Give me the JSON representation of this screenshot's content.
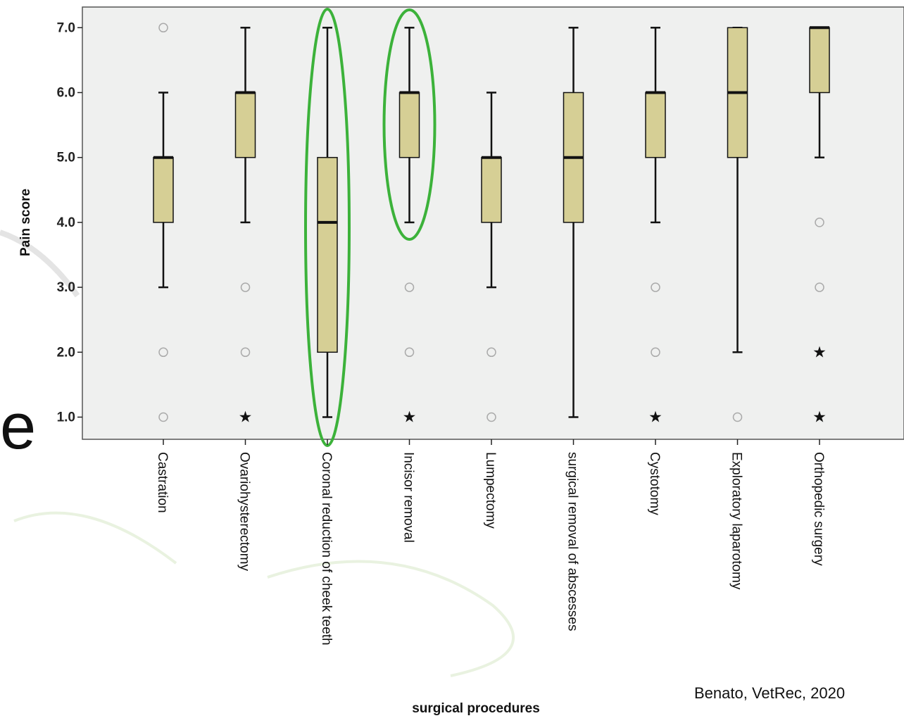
{
  "chart_data": {
    "type": "boxplot",
    "xlabel": "surgical procedures",
    "ylabel": "Pain score",
    "ylim": [
      1,
      7
    ],
    "yticks": [
      "1.0",
      "2.0",
      "3.0",
      "4.0",
      "5.0",
      "6.0",
      "7.0"
    ],
    "grid": false,
    "categories": [
      "Castration",
      "Ovariohysterectomy",
      "Coronal reduction of cheek teeth",
      "Incisor removal",
      "Lumpectomy",
      "surgical removal of abscesses",
      "Cystotomy",
      "Exploratory laparotomy",
      "Orthopedic surgery"
    ],
    "boxes": [
      {
        "whisker_low": 3,
        "q1": 4,
        "median": 5,
        "q3": 5,
        "whisker_high": 6
      },
      {
        "whisker_low": 4,
        "q1": 5,
        "median": 6,
        "q3": 6,
        "whisker_high": 7
      },
      {
        "whisker_low": 1,
        "q1": 2,
        "median": 4,
        "q3": 5,
        "whisker_high": 7
      },
      {
        "whisker_low": 4,
        "q1": 5,
        "median": 6,
        "q3": 6,
        "whisker_high": 7
      },
      {
        "whisker_low": 3,
        "q1": 4,
        "median": 5,
        "q3": 5,
        "whisker_high": 6
      },
      {
        "whisker_low": 1,
        "q1": 4,
        "median": 5,
        "q3": 6,
        "whisker_high": 7
      },
      {
        "whisker_low": 4,
        "q1": 5,
        "median": 6,
        "q3": 6,
        "whisker_high": 7
      },
      {
        "whisker_low": 2,
        "q1": 5,
        "median": 6,
        "q3": 7,
        "whisker_high": 7
      },
      {
        "whisker_low": 5,
        "q1": 6,
        "median": 7,
        "q3": 7,
        "whisker_high": 7
      }
    ],
    "outliers": [
      {
        "category": 0,
        "value": 7,
        "marker": "circle"
      },
      {
        "category": 0,
        "value": 2,
        "marker": "circle"
      },
      {
        "category": 0,
        "value": 1,
        "marker": "circle"
      },
      {
        "category": 1,
        "value": 3,
        "marker": "circle"
      },
      {
        "category": 1,
        "value": 2,
        "marker": "circle"
      },
      {
        "category": 1,
        "value": 1,
        "marker": "star"
      },
      {
        "category": 3,
        "value": 3,
        "marker": "circle"
      },
      {
        "category": 3,
        "value": 2,
        "marker": "circle"
      },
      {
        "category": 3,
        "value": 1,
        "marker": "star"
      },
      {
        "category": 4,
        "value": 2,
        "marker": "circle"
      },
      {
        "category": 4,
        "value": 1,
        "marker": "circle"
      },
      {
        "category": 6,
        "value": 3,
        "marker": "circle"
      },
      {
        "category": 6,
        "value": 2,
        "marker": "circle"
      },
      {
        "category": 6,
        "value": 1,
        "marker": "star"
      },
      {
        "category": 7,
        "value": 1,
        "marker": "circle"
      },
      {
        "category": 8,
        "value": 4,
        "marker": "circle"
      },
      {
        "category": 8,
        "value": 3,
        "marker": "circle"
      },
      {
        "category": 8,
        "value": 2,
        "marker": "star"
      },
      {
        "category": 8,
        "value": 1,
        "marker": "star"
      }
    ],
    "highlighted_categories": [
      2,
      3
    ],
    "highlight_color": "#3cb23a",
    "box_fill": "#d6cf95",
    "plot_background": "#eff0ef"
  },
  "citation": "Benato, VetRec, 2020",
  "stray_glyph": "e"
}
